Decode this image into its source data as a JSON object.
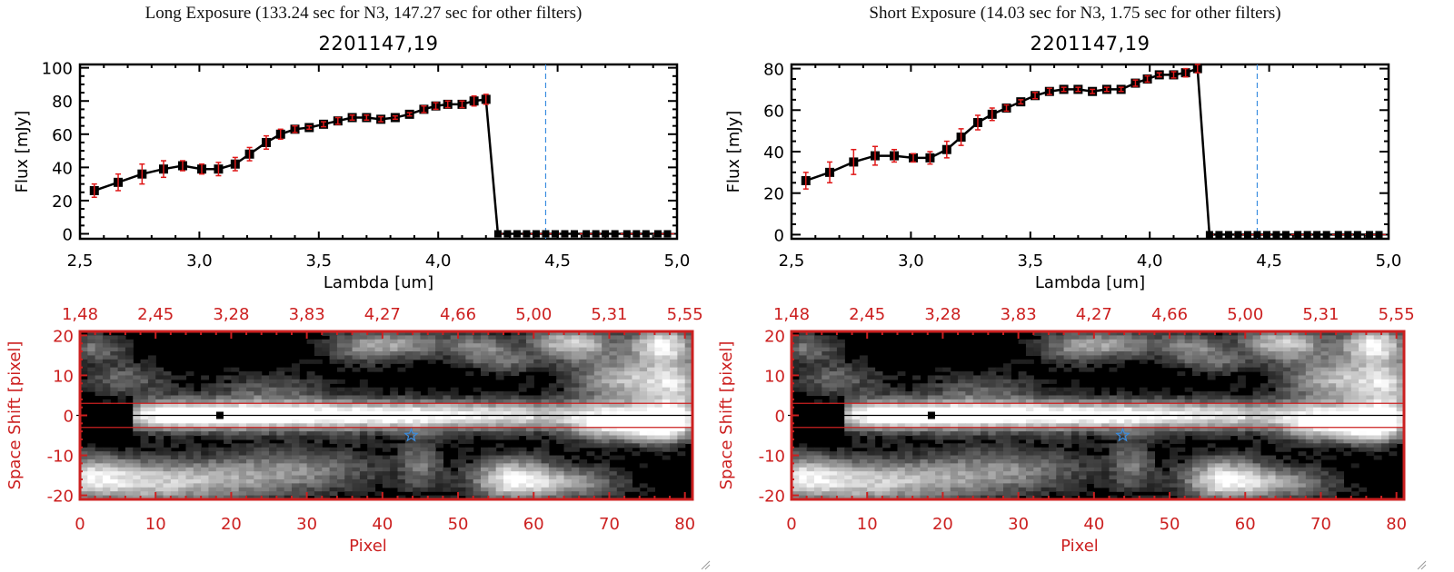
{
  "colors": {
    "axis": "#000000",
    "line": "#000000",
    "errorbar": "#e01818",
    "image_axis": "#cc2020",
    "marker_line": "#3a8de0",
    "zero_dash": "#e01818",
    "star": "#3a8de0"
  },
  "chart_data": [
    {
      "id": "long",
      "type": "line",
      "exposure_title": "Long Exposure (133.24 sec for N3, 147.27 sec for other filters)",
      "title": "2201147,19",
      "xlabel": "Lambda [um]",
      "ylabel": "Flux [mJy]",
      "xlim": [
        2.5,
        5.0
      ],
      "ylim": [
        -3,
        102
      ],
      "xticks": [
        2.5,
        3.0,
        3.5,
        4.0,
        4.5,
        5.0
      ],
      "xtick_labels": [
        "2,5",
        "3,0",
        "3,5",
        "4,0",
        "4,5",
        "5,0"
      ],
      "yticks": [
        0,
        20,
        40,
        60,
        80,
        100
      ],
      "ytick_labels": [
        "0",
        "20",
        "40",
        "60",
        "80",
        "100"
      ],
      "vline_x": 4.45,
      "x": [
        2.56,
        2.66,
        2.76,
        2.85,
        2.93,
        3.01,
        3.08,
        3.15,
        3.21,
        3.28,
        3.34,
        3.4,
        3.46,
        3.52,
        3.58,
        3.64,
        3.7,
        3.76,
        3.82,
        3.88,
        3.94,
        3.99,
        4.04,
        4.1,
        4.15,
        4.2,
        4.25,
        4.29,
        4.33,
        4.37,
        4.41,
        4.45,
        4.49,
        4.53,
        4.57,
        4.62,
        4.66,
        4.7,
        4.74,
        4.79,
        4.83,
        4.87,
        4.92,
        4.96
      ],
      "y": [
        26,
        31,
        36,
        39,
        41,
        39,
        39,
        42,
        48,
        55,
        60,
        63,
        64,
        66,
        68,
        70,
        70,
        69,
        70,
        72,
        75,
        77,
        78,
        78,
        80,
        81,
        0,
        0,
        0,
        0,
        0,
        0,
        0,
        0,
        0,
        0,
        0,
        0,
        0,
        0,
        0,
        0,
        0,
        0
      ],
      "yerr": [
        4,
        5,
        6,
        5,
        3,
        3,
        4,
        4,
        4,
        4,
        3,
        2,
        1,
        1.5,
        2,
        1.5,
        1.5,
        1.5,
        1,
        1,
        2,
        2,
        2,
        2,
        3,
        3,
        0,
        0,
        0,
        0,
        0,
        0,
        0,
        0,
        0,
        0,
        0,
        0,
        0,
        0,
        0,
        0,
        0,
        0
      ]
    },
    {
      "id": "short",
      "type": "line",
      "exposure_title": "Short Exposure (14.03 sec for N3, 1.75 sec for other filters)",
      "title": "2201147,19",
      "xlabel": "Lambda [um]",
      "ylabel": "Flux [mJy]",
      "xlim": [
        2.5,
        5.0
      ],
      "ylim": [
        -2,
        82
      ],
      "xticks": [
        2.5,
        3.0,
        3.5,
        4.0,
        4.5,
        5.0
      ],
      "xtick_labels": [
        "2,5",
        "3,0",
        "3,5",
        "4,0",
        "4,5",
        "5,0"
      ],
      "yticks": [
        0,
        20,
        40,
        60,
        80
      ],
      "ytick_labels": [
        "0",
        "20",
        "40",
        "60",
        "80"
      ],
      "vline_x": 4.45,
      "x": [
        2.56,
        2.66,
        2.76,
        2.85,
        2.93,
        3.01,
        3.08,
        3.15,
        3.21,
        3.28,
        3.34,
        3.4,
        3.46,
        3.52,
        3.58,
        3.64,
        3.7,
        3.76,
        3.82,
        3.88,
        3.94,
        3.99,
        4.04,
        4.1,
        4.15,
        4.2,
        4.25,
        4.29,
        4.33,
        4.37,
        4.41,
        4.45,
        4.49,
        4.53,
        4.57,
        4.62,
        4.66,
        4.7,
        4.74,
        4.79,
        4.83,
        4.87,
        4.92,
        4.96
      ],
      "y": [
        26,
        30,
        35,
        38,
        38,
        37,
        37,
        41,
        47,
        54,
        58,
        61,
        64,
        67,
        69,
        70,
        70,
        69,
        70,
        70,
        73,
        75,
        77,
        77,
        78,
        80,
        0,
        0,
        0,
        0,
        0,
        0,
        0,
        0,
        0,
        0,
        0,
        0,
        0,
        0,
        0,
        0,
        0,
        0
      ],
      "yerr": [
        4,
        5,
        6,
        4.5,
        3,
        2,
        3,
        4,
        4,
        3.5,
        3,
        1.5,
        1,
        1.5,
        1.5,
        1,
        1,
        1,
        1,
        1,
        1.5,
        1.5,
        1,
        1.5,
        2,
        2,
        0,
        0,
        0,
        0,
        0,
        0,
        0,
        0,
        0,
        0,
        0,
        0,
        0,
        0,
        0,
        0,
        0,
        0
      ]
    },
    {
      "id": "long-image",
      "type": "heatmap",
      "xlabel": "Pixel",
      "ylabel": "Space Shift [pixel]",
      "xlim": [
        0,
        81
      ],
      "ylim": [
        -21,
        21
      ],
      "xticks": [
        0,
        10,
        20,
        30,
        40,
        50,
        60,
        70,
        80
      ],
      "xtick_labels": [
        "0",
        "10",
        "20",
        "30",
        "40",
        "50",
        "60",
        "70",
        "80"
      ],
      "yticks": [
        -20,
        -10,
        0,
        10,
        20
      ],
      "ytick_labels": [
        "-20",
        "-10",
        "0",
        "10",
        "20"
      ],
      "top_ticks": [
        0,
        10,
        20,
        30,
        40,
        50,
        60,
        70,
        80
      ],
      "top_tick_labels": [
        "1,48",
        "2,45",
        "3,28",
        "3,83",
        "4,27",
        "4,66",
        "5,00",
        "5,31",
        "5,55"
      ],
      "aperture_y": [
        -3,
        3
      ],
      "center_y": 0,
      "marker_square": [
        18.5,
        0
      ],
      "star_marker": [
        43.8,
        -5
      ]
    },
    {
      "id": "short-image",
      "type": "heatmap",
      "xlabel": "Pixel",
      "ylabel": "Space Shift [pixel]",
      "xlim": [
        0,
        81
      ],
      "ylim": [
        -21,
        21
      ],
      "xticks": [
        0,
        10,
        20,
        30,
        40,
        50,
        60,
        70,
        80
      ],
      "xtick_labels": [
        "0",
        "10",
        "20",
        "30",
        "40",
        "50",
        "60",
        "70",
        "80"
      ],
      "yticks": [
        -20,
        -10,
        0,
        10,
        20
      ],
      "ytick_labels": [
        "-20",
        "-10",
        "0",
        "10",
        "20"
      ],
      "top_ticks": [
        0,
        10,
        20,
        30,
        40,
        50,
        60,
        70,
        80
      ],
      "top_tick_labels": [
        "1,48",
        "2,45",
        "3,28",
        "3,83",
        "4,27",
        "4,66",
        "5,00",
        "5,31",
        "5,55"
      ],
      "aperture_y": [
        -3,
        3
      ],
      "center_y": 0,
      "marker_square": [
        18.5,
        0
      ],
      "star_marker": [
        43.8,
        -5
      ]
    }
  ]
}
